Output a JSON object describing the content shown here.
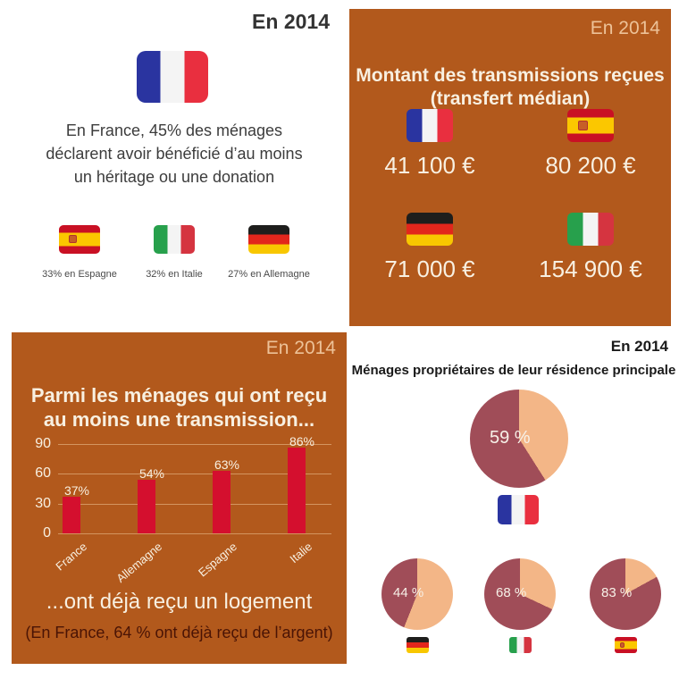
{
  "colors": {
    "panel_orange": "#b2591c",
    "accent_peach": "#edc298",
    "cream_text": "#f8f0e1",
    "bar_red": "#d40f2e",
    "pie_owner": "#a04d58",
    "pie_remainder": "#f3b687",
    "dark_note": "#4a1405",
    "dark_text": "#3c3c3c"
  },
  "panels": {
    "top_left": {
      "year_label": "En 2014",
      "flag": "france",
      "headline": "En France, 45% des ménages\ndéclarent avoir bénéficié d’au moins\nun héritage ou une donation",
      "stats": [
        {
          "country": "spain",
          "caption": "33% en Espagne"
        },
        {
          "country": "italy",
          "caption": "32% en Italie"
        },
        {
          "country": "germany",
          "caption": "27% en Allemagne"
        }
      ]
    },
    "top_right": {
      "year_label": "En 2014",
      "title": "Montant des transmissions reçues\n(transfert médian)",
      "amounts": [
        {
          "country": "france",
          "value": "41 100 €"
        },
        {
          "country": "spain",
          "value": "80 200 €"
        },
        {
          "country": "germany",
          "value": "71 000 €"
        },
        {
          "country": "italy",
          "value": "154 900 €"
        }
      ]
    },
    "bottom_left": {
      "year_label": "En 2014",
      "title": "Parmi les ménages qui ont reçu\nau moins une transmission...",
      "subtitle": "...ont déjà reçu un logement",
      "note": "(En France, 64 % ont déjà reçu de l’argent)"
    },
    "bottom_right": {
      "year_label": "En 2014",
      "title": "Ménages propriétaires de leur résidence principale",
      "main_pie": {
        "country": "france",
        "value": 59,
        "label": "59 %"
      },
      "small_pies": [
        {
          "country": "germany",
          "value": 44,
          "label": "44 %"
        },
        {
          "country": "italy",
          "value": 68,
          "label": "68 %"
        },
        {
          "country": "spain",
          "value": 83,
          "label": "83 %"
        }
      ]
    }
  },
  "chart_data": [
    {
      "type": "bar",
      "title": "Parmi les ménages qui ont reçu au moins une transmission... ...ont déjà reçu un logement",
      "categories": [
        "France",
        "Allemagne",
        "Espagne",
        "Italie"
      ],
      "values": [
        37,
        54,
        63,
        86
      ],
      "value_labels": [
        "37%",
        "54%",
        "63%",
        "86%"
      ],
      "ylim": [
        0,
        90
      ],
      "yticks": [
        0,
        30,
        60,
        90
      ],
      "grid": true,
      "legend": "none",
      "bar_color": "#d40f2e"
    },
    {
      "type": "pie",
      "title": "Ménages propriétaires de leur résidence principale (En 2014)",
      "series": [
        {
          "name": "France",
          "value": 59
        },
        {
          "name": "Allemagne",
          "value": 44
        },
        {
          "name": "Italie",
          "value": 68
        },
        {
          "name": "Espagne",
          "value": 83
        }
      ],
      "colors": {
        "owner": "#a04d58",
        "remainder": "#f3b687"
      }
    }
  ]
}
